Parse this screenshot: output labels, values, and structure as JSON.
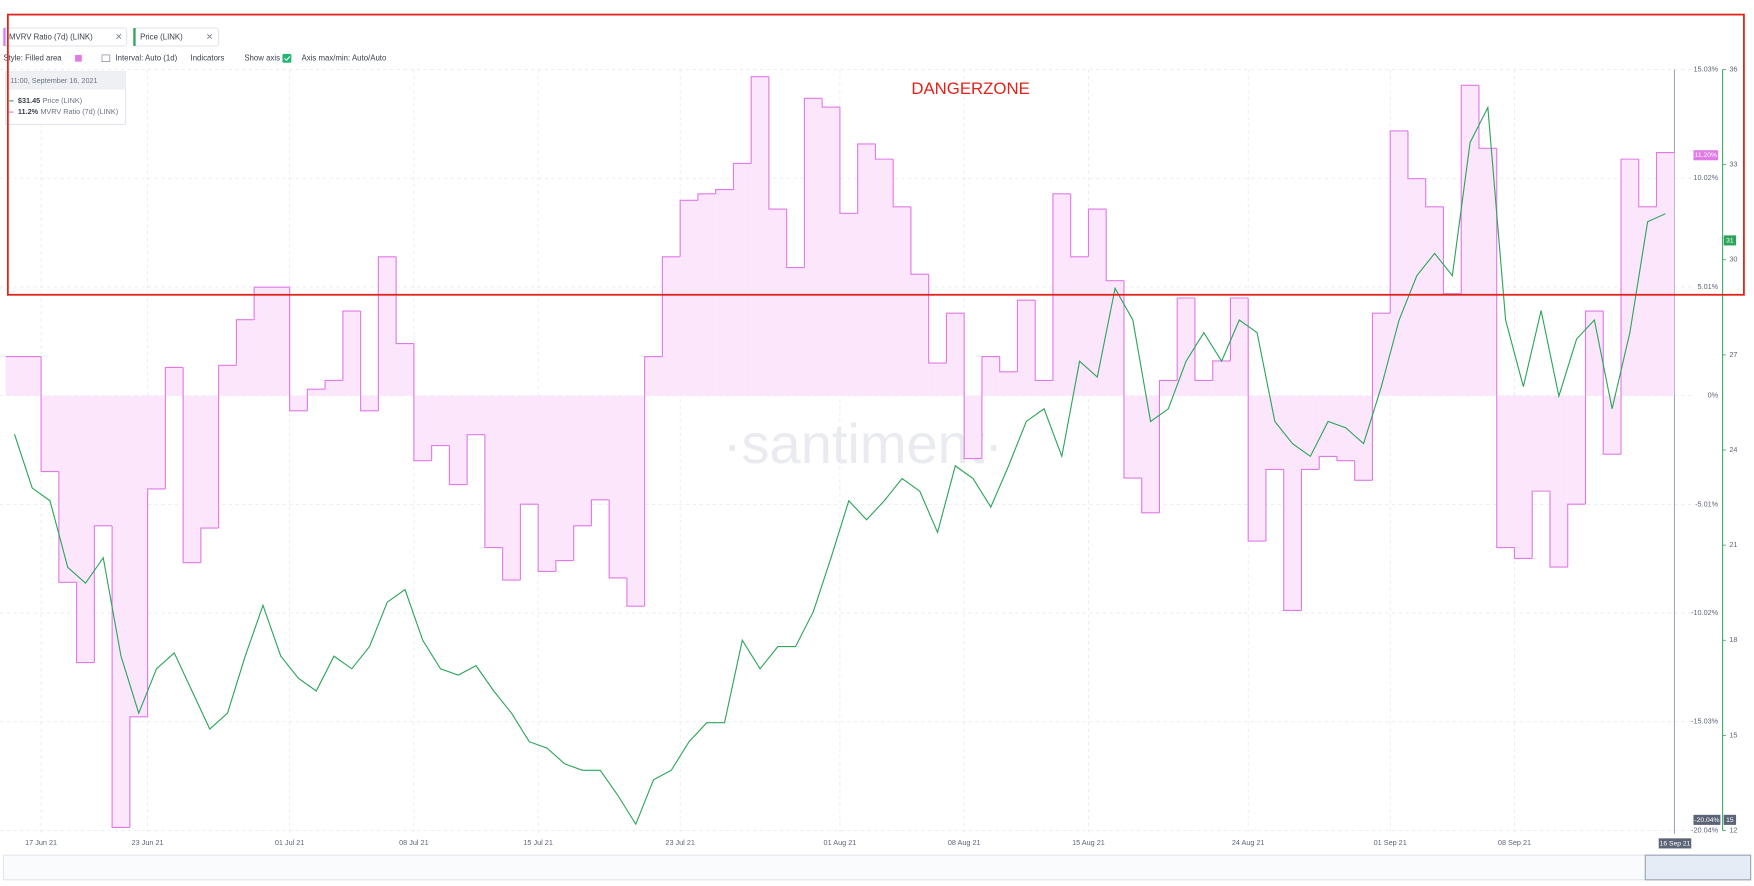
{
  "chart_data": {
    "type": "line",
    "x": [
      "2021-06-15",
      "2021-06-16",
      "2021-06-17",
      "2021-06-18",
      "2021-06-19",
      "2021-06-20",
      "2021-06-21",
      "2021-06-22",
      "2021-06-23",
      "2021-06-24",
      "2021-06-25",
      "2021-06-26",
      "2021-06-27",
      "2021-06-28",
      "2021-06-29",
      "2021-06-30",
      "2021-07-01",
      "2021-07-02",
      "2021-07-03",
      "2021-07-04",
      "2021-07-05",
      "2021-07-06",
      "2021-07-07",
      "2021-07-08",
      "2021-07-09",
      "2021-07-10",
      "2021-07-11",
      "2021-07-12",
      "2021-07-13",
      "2021-07-14",
      "2021-07-15",
      "2021-07-16",
      "2021-07-17",
      "2021-07-18",
      "2021-07-19",
      "2021-07-20",
      "2021-07-21",
      "2021-07-22",
      "2021-07-23",
      "2021-07-24",
      "2021-07-25",
      "2021-07-26",
      "2021-07-27",
      "2021-07-28",
      "2021-07-29",
      "2021-07-30",
      "2021-07-31",
      "2021-08-01",
      "2021-08-02",
      "2021-08-03",
      "2021-08-04",
      "2021-08-05",
      "2021-08-06",
      "2021-08-07",
      "2021-08-08",
      "2021-08-09",
      "2021-08-10",
      "2021-08-11",
      "2021-08-12",
      "2021-08-13",
      "2021-08-14",
      "2021-08-15",
      "2021-08-16",
      "2021-08-17",
      "2021-08-18",
      "2021-08-19",
      "2021-08-20",
      "2021-08-21",
      "2021-08-22",
      "2021-08-23",
      "2021-08-24",
      "2021-08-25",
      "2021-08-26",
      "2021-08-27",
      "2021-08-28",
      "2021-08-29",
      "2021-08-30",
      "2021-08-31",
      "2021-09-01",
      "2021-09-02",
      "2021-09-03",
      "2021-09-04",
      "2021-09-05",
      "2021-09-06",
      "2021-09-07",
      "2021-09-08",
      "2021-09-09",
      "2021-09-10",
      "2021-09-11",
      "2021-09-12",
      "2021-09-13",
      "2021-09-14",
      "2021-09-15",
      "2021-09-16"
    ],
    "xlim": [
      "2021-06-15",
      "2021-09-16"
    ],
    "xticks": [
      {
        "value": "2021-06-17",
        "label": "17 Jun 21"
      },
      {
        "value": "2021-06-23",
        "label": "23 Jun 21"
      },
      {
        "value": "2021-07-01",
        "label": "01 Jul 21"
      },
      {
        "value": "2021-07-08",
        "label": "08 Jul 21"
      },
      {
        "value": "2021-07-15",
        "label": "15 Jul 21"
      },
      {
        "value": "2021-07-23",
        "label": "23 Jul 21"
      },
      {
        "value": "2021-08-01",
        "label": "01 Aug 21"
      },
      {
        "value": "2021-08-08",
        "label": "08 Aug 21"
      },
      {
        "value": "2021-08-15",
        "label": "15 Aug 21"
      },
      {
        "value": "2021-08-24",
        "label": "24 Aug 21"
      },
      {
        "value": "2021-09-01",
        "label": "01 Sep 21"
      },
      {
        "value": "2021-09-08",
        "label": "08 Sep 21"
      }
    ],
    "ylim": [
      -20.04,
      15.03
    ],
    "yticks": [
      {
        "value": 15.03,
        "label": "15.03%"
      },
      {
        "value": 10.02,
        "label": "10.02%"
      },
      {
        "value": 5.01,
        "label": "5.01%"
      },
      {
        "value": 0,
        "label": "0%"
      },
      {
        "value": -5.01,
        "label": "-5.01%"
      },
      {
        "value": -10.02,
        "label": "-10.02%"
      },
      {
        "value": -15.03,
        "label": "-15.03%"
      },
      {
        "value": -20.04,
        "label": "-20.04%"
      }
    ],
    "y2lim": [
      12,
      36
    ],
    "y2ticks": [
      12,
      15,
      18,
      21,
      24,
      27,
      30,
      33,
      36
    ],
    "grid": true,
    "annotation": "DANGERZONE",
    "series": [
      {
        "name": "MVRV Ratio (7d) (LINK)",
        "type": "area",
        "color": "#e07ae6",
        "fill_color": "#fce6fc",
        "values": [
          1.8,
          1.8,
          -3.5,
          -8.6,
          -12.3,
          -6.0,
          -19.9,
          -14.8,
          -4.3,
          1.3,
          -7.7,
          -6.1,
          1.4,
          3.5,
          5.0,
          5.0,
          -0.7,
          0.3,
          0.7,
          3.9,
          -0.7,
          6.4,
          2.4,
          -3.0,
          -2.3,
          -4.1,
          -1.8,
          -7.0,
          -8.5,
          -5.0,
          -8.1,
          -7.6,
          -6.0,
          -4.8,
          -8.4,
          -9.7,
          1.8,
          6.4,
          9.0,
          9.3,
          9.5,
          10.7,
          14.7,
          8.6,
          5.9,
          13.7,
          13.3,
          8.4,
          11.6,
          10.9,
          8.7,
          5.6,
          1.5,
          3.8,
          -2.9,
          1.8,
          1.1,
          4.4,
          0.7,
          9.3,
          6.4,
          8.6,
          5.3,
          -3.8,
          -5.4,
          0.7,
          4.5,
          0.7,
          1.6,
          4.5,
          -6.7,
          -3.4,
          -9.9,
          -3.4,
          -2.8,
          -3.0,
          -3.9,
          3.8,
          12.2,
          10.0,
          8.7,
          4.7,
          14.3,
          11.4,
          -7.0,
          -7.5,
          -4.4,
          -7.9,
          -5.0,
          3.9,
          -2.7,
          10.9,
          8.7,
          11.2
        ]
      },
      {
        "name": "Price (LINK)",
        "type": "line",
        "axis": "y2",
        "color": "#2ca55a",
        "values": [
          24.5,
          22.8,
          22.4,
          20.3,
          19.8,
          20.6,
          17.5,
          15.7,
          17.1,
          17.6,
          16.4,
          15.2,
          15.7,
          17.5,
          19.1,
          17.5,
          16.8,
          16.4,
          17.5,
          17.1,
          17.8,
          19.2,
          19.6,
          18.0,
          17.1,
          16.9,
          17.2,
          16.4,
          15.7,
          14.8,
          14.6,
          14.1,
          13.9,
          13.9,
          13.1,
          12.2,
          13.6,
          13.9,
          14.8,
          15.4,
          15.4,
          18.0,
          17.1,
          17.8,
          17.8,
          18.9,
          20.6,
          22.4,
          21.8,
          22.4,
          23.1,
          22.7,
          21.4,
          23.5,
          23.1,
          22.2,
          23.5,
          24.9,
          25.3,
          23.8,
          26.8,
          26.3,
          29.1,
          28.1,
          24.9,
          25.3,
          26.8,
          27.7,
          26.8,
          28.1,
          27.7,
          24.9,
          24.2,
          23.8,
          24.9,
          24.7,
          24.2,
          26.0,
          28.1,
          29.5,
          30.2,
          29.5,
          33.7,
          34.8,
          28.1,
          26.0,
          28.4,
          25.7,
          27.5,
          28.1,
          25.3,
          27.7,
          31.2,
          31.45
        ]
      }
    ]
  },
  "ui": {
    "style": "Style: Filled area",
    "interval": "Interval: Auto (1d)",
    "indicators": "Indicators",
    "show_axis": "Show axis",
    "axis_minmax": "Axis max/min: Auto/Auto",
    "tooltip": {
      "time": "11:00, September 16, 2021",
      "price": "$31.45",
      "price_name": "Price (LINK)",
      "mvrv": "11.2%",
      "mvrv_name": "MVRV Ratio (7d) (LINK)"
    },
    "badges": {
      "mvrv": "11.20%",
      "price": "31",
      "mvrv_min": "-20.04%",
      "price_min": "15",
      "date": "16 Sep 21"
    },
    "watermark": "·santiment·"
  }
}
